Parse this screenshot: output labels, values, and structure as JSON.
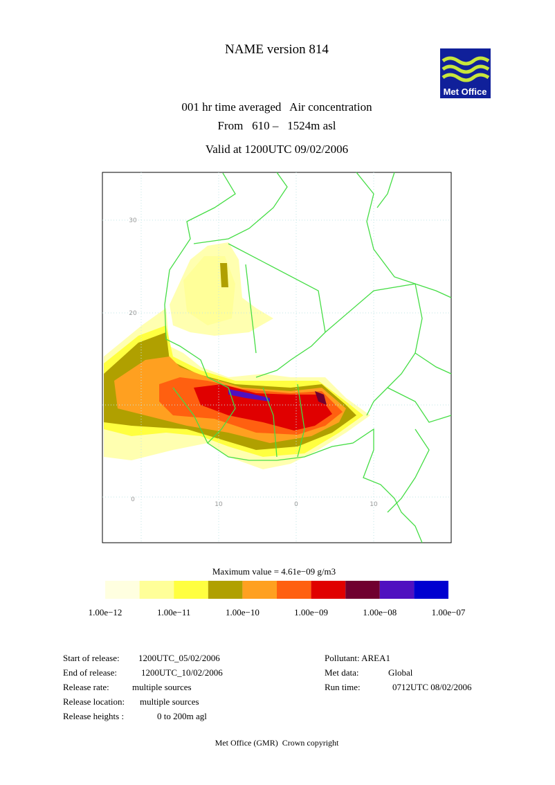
{
  "header": {
    "title": "NAME version 814",
    "logo": "Met Office",
    "line1": "001 hr time averaged   Air concentration",
    "line2": "From   610 –   1524m asl",
    "valid": "Valid at 1200UTC 09/02/2006"
  },
  "map": {
    "lat_labels": [
      "30",
      "20",
      "0"
    ],
    "lon_labels": [
      "10",
      "0",
      "10"
    ]
  },
  "legend": {
    "max_value": "Maximum value = 4.61e−09 g/m3",
    "colors": [
      "#ffffe0",
      "#ffff99",
      "#ffff40",
      "#b0a000",
      "#ffa020",
      "#ff6010",
      "#e00000",
      "#700030",
      "#5010c0",
      "#0000d0"
    ],
    "labels": [
      "1.00e−12",
      "1.00e−11",
      "1.00e−10",
      "1.00e−09",
      "1.00e−08",
      "1.00e−07"
    ]
  },
  "info": {
    "left": [
      [
        "Start of release:",
        "1200UTC_05/02/2006"
      ],
      [
        "End of release:",
        "1200UTC_10/02/2006"
      ],
      [
        "Release rate:",
        "multiple sources"
      ],
      [
        "Release location:",
        "multiple sources"
      ],
      [
        "Release heights :",
        "0 to    200m agl"
      ]
    ],
    "right": [
      [
        "Pollutant: AREA1"
      ],
      [
        "Met data:",
        "Global"
      ],
      [
        "Run time:",
        "0712UTC 08/02/2006"
      ]
    ]
  },
  "footer": "Met Office (GMR)  Crown copyright"
}
